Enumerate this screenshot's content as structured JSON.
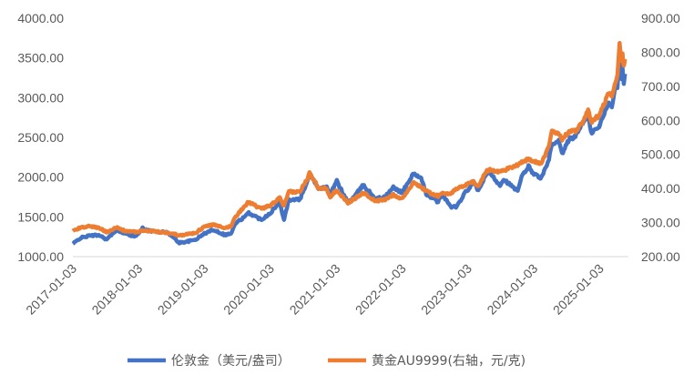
{
  "chart_data": {
    "type": "line",
    "title": "",
    "xlabel": "",
    "ylabel": "",
    "x_ticks": [
      "2017-01-03",
      "2018-01-03",
      "2019-01-03",
      "2020-01-03",
      "2021-01-03",
      "2022-01-03",
      "2023-01-03",
      "2024-01-03",
      "2025-01-03"
    ],
    "y_left_ticks": [
      "1000.00",
      "1500.00",
      "2000.00",
      "2500.00",
      "3000.00",
      "3500.00",
      "4000.00"
    ],
    "y_right_ticks": [
      "200.00",
      "300.00",
      "400.00",
      "500.00",
      "600.00",
      "700.00",
      "800.00",
      "900.00"
    ],
    "y_left_lim": [
      1000,
      4000
    ],
    "y_right_lim": [
      200,
      900
    ],
    "grid": false,
    "legend_position": "bottom",
    "series": [
      {
        "name": "伦敦金（美元/盎司）",
        "axis": "left",
        "color": "#4472C4",
        "points": [
          [
            "2017-01-03",
            1160
          ],
          [
            "2017-02-15",
            1235
          ],
          [
            "2017-04-10",
            1265
          ],
          [
            "2017-06-01",
            1270
          ],
          [
            "2017-07-10",
            1215
          ],
          [
            "2017-09-05",
            1340
          ],
          [
            "2017-10-15",
            1290
          ],
          [
            "2017-12-15",
            1255
          ],
          [
            "2018-01-25",
            1355
          ],
          [
            "2018-03-15",
            1320
          ],
          [
            "2018-05-01",
            1310
          ],
          [
            "2018-06-15",
            1300
          ],
          [
            "2018-08-16",
            1175
          ],
          [
            "2018-10-01",
            1190
          ],
          [
            "2018-11-15",
            1215
          ],
          [
            "2019-01-03",
            1290
          ],
          [
            "2019-02-20",
            1340
          ],
          [
            "2019-04-25",
            1275
          ],
          [
            "2019-05-30",
            1290
          ],
          [
            "2019-06-25",
            1420
          ],
          [
            "2019-08-20",
            1510
          ],
          [
            "2019-09-05",
            1550
          ],
          [
            "2019-11-15",
            1465
          ],
          [
            "2020-01-03",
            1550
          ],
          [
            "2020-02-24",
            1680
          ],
          [
            "2020-03-19",
            1475
          ],
          [
            "2020-04-15",
            1715
          ],
          [
            "2020-06-15",
            1720
          ],
          [
            "2020-07-27",
            1940
          ],
          [
            "2020-08-07",
            2065
          ],
          [
            "2020-09-25",
            1860
          ],
          [
            "2020-11-10",
            1870
          ],
          [
            "2020-11-30",
            1780
          ],
          [
            "2021-01-05",
            1950
          ],
          [
            "2021-03-08",
            1680
          ],
          [
            "2021-04-15",
            1760
          ],
          [
            "2021-06-01",
            1900
          ],
          [
            "2021-08-09",
            1730
          ],
          [
            "2021-09-30",
            1750
          ],
          [
            "2021-11-15",
            1870
          ],
          [
            "2022-01-03",
            1805
          ],
          [
            "2022-03-08",
            2050
          ],
          [
            "2022-04-18",
            1980
          ],
          [
            "2022-05-16",
            1790
          ],
          [
            "2022-07-21",
            1690
          ],
          [
            "2022-08-15",
            1790
          ],
          [
            "2022-09-28",
            1625
          ],
          [
            "2022-11-03",
            1630
          ],
          [
            "2022-12-20",
            1810
          ],
          [
            "2023-01-03",
            1840
          ],
          [
            "2023-02-02",
            1950
          ],
          [
            "2023-03-01",
            1820
          ],
          [
            "2023-04-13",
            2040
          ],
          [
            "2023-05-04",
            2050
          ],
          [
            "2023-06-29",
            1900
          ],
          [
            "2023-07-20",
            1975
          ],
          [
            "2023-10-05",
            1820
          ],
          [
            "2023-10-27",
            2000
          ],
          [
            "2023-12-04",
            2135
          ],
          [
            "2024-01-03",
            2040
          ],
          [
            "2024-02-14",
            1990
          ],
          [
            "2024-03-21",
            2180
          ],
          [
            "2024-04-12",
            2400
          ],
          [
            "2024-05-20",
            2450
          ],
          [
            "2024-06-07",
            2290
          ],
          [
            "2024-07-17",
            2480
          ],
          [
            "2024-08-20",
            2510
          ],
          [
            "2024-09-26",
            2670
          ],
          [
            "2024-10-30",
            2790
          ],
          [
            "2024-11-14",
            2560
          ],
          [
            "2024-12-31",
            2625
          ],
          [
            "2025-01-03",
            2660
          ],
          [
            "2025-02-21",
            2940
          ],
          [
            "2025-03-10",
            2900
          ],
          [
            "2025-04-01",
            3130
          ],
          [
            "2025-04-10",
            3150
          ],
          [
            "2025-04-22",
            3500
          ],
          [
            "2025-05-01",
            3240
          ],
          [
            "2025-05-08",
            3390
          ],
          [
            "2025-05-15",
            3150
          ],
          [
            "2025-05-22",
            3300
          ]
        ]
      },
      {
        "name": "黄金AU9999(右轴，元/克)",
        "axis": "right",
        "color": "#ED7D31",
        "points": [
          [
            "2017-01-03",
            275
          ],
          [
            "2017-02-15",
            285
          ],
          [
            "2017-04-10",
            290
          ],
          [
            "2017-06-01",
            283
          ],
          [
            "2017-07-10",
            273
          ],
          [
            "2017-09-05",
            285
          ],
          [
            "2017-10-15",
            276
          ],
          [
            "2017-12-15",
            272
          ],
          [
            "2018-01-25",
            276
          ],
          [
            "2018-03-15",
            275
          ],
          [
            "2018-05-01",
            272
          ],
          [
            "2018-06-15",
            270
          ],
          [
            "2018-08-16",
            263
          ],
          [
            "2018-10-01",
            266
          ],
          [
            "2018-11-15",
            270
          ],
          [
            "2019-01-03",
            288
          ],
          [
            "2019-02-20",
            294
          ],
          [
            "2019-04-25",
            283
          ],
          [
            "2019-05-30",
            290
          ],
          [
            "2019-06-25",
            318
          ],
          [
            "2019-08-20",
            352
          ],
          [
            "2019-09-05",
            360
          ],
          [
            "2019-11-15",
            340
          ],
          [
            "2020-01-03",
            350
          ],
          [
            "2020-02-24",
            372
          ],
          [
            "2020-03-19",
            348
          ],
          [
            "2020-04-15",
            390
          ],
          [
            "2020-06-15",
            390
          ],
          [
            "2020-07-27",
            430
          ],
          [
            "2020-08-07",
            450
          ],
          [
            "2020-09-25",
            402
          ],
          [
            "2020-11-10",
            400
          ],
          [
            "2020-11-30",
            376
          ],
          [
            "2021-01-05",
            396
          ],
          [
            "2021-03-08",
            358
          ],
          [
            "2021-04-15",
            370
          ],
          [
            "2021-06-01",
            388
          ],
          [
            "2021-08-09",
            363
          ],
          [
            "2021-09-30",
            367
          ],
          [
            "2021-11-15",
            382
          ],
          [
            "2022-01-03",
            370
          ],
          [
            "2022-03-08",
            418
          ],
          [
            "2022-04-18",
            405
          ],
          [
            "2022-05-16",
            392
          ],
          [
            "2022-07-21",
            378
          ],
          [
            "2022-08-15",
            386
          ],
          [
            "2022-09-28",
            386
          ],
          [
            "2022-11-03",
            398
          ],
          [
            "2022-12-20",
            410
          ],
          [
            "2023-01-03",
            415
          ],
          [
            "2023-02-02",
            420
          ],
          [
            "2023-03-01",
            405
          ],
          [
            "2023-04-13",
            450
          ],
          [
            "2023-05-04",
            455
          ],
          [
            "2023-06-29",
            449
          ],
          [
            "2023-07-20",
            453
          ],
          [
            "2023-10-05",
            470
          ],
          [
            "2023-10-27",
            478
          ],
          [
            "2023-12-04",
            486
          ],
          [
            "2024-01-03",
            478
          ],
          [
            "2024-02-14",
            475
          ],
          [
            "2024-03-21",
            515
          ],
          [
            "2024-04-12",
            565
          ],
          [
            "2024-05-20",
            565
          ],
          [
            "2024-06-07",
            545
          ],
          [
            "2024-07-17",
            567
          ],
          [
            "2024-08-20",
            568
          ],
          [
            "2024-09-26",
            592
          ],
          [
            "2024-10-30",
            628
          ],
          [
            "2024-11-14",
            595
          ],
          [
            "2024-12-31",
            615
          ],
          [
            "2025-01-03",
            620
          ],
          [
            "2025-02-21",
            680
          ],
          [
            "2025-03-10",
            675
          ],
          [
            "2025-04-01",
            715
          ],
          [
            "2025-04-10",
            735
          ],
          [
            "2025-04-22",
            820
          ],
          [
            "2025-05-01",
            775
          ],
          [
            "2025-05-08",
            795
          ],
          [
            "2025-05-15",
            760
          ],
          [
            "2025-05-22",
            780
          ]
        ]
      }
    ]
  }
}
